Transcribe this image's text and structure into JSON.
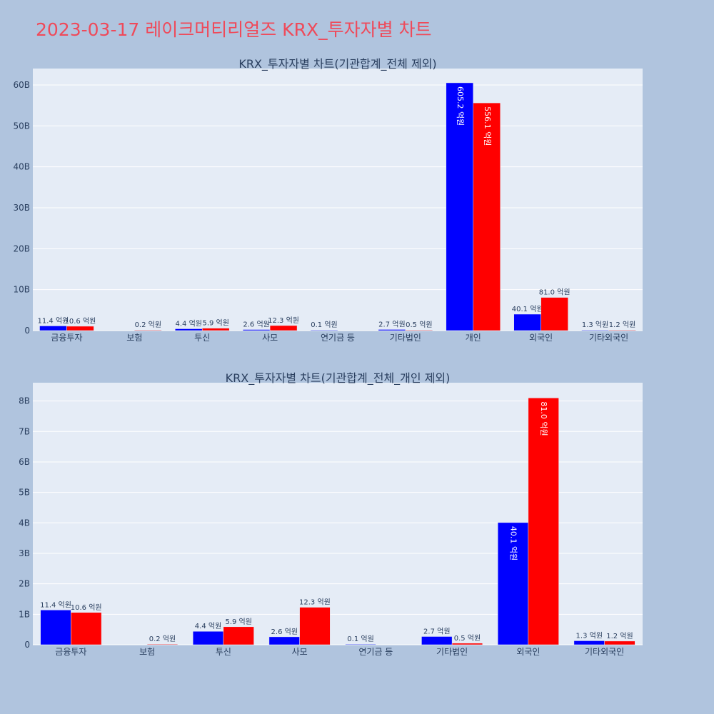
{
  "page": {
    "title": "2023-03-17 레이크머티리얼즈 KRX_투자자별 차트"
  },
  "chart_data": [
    {
      "type": "bar",
      "title": "KRX_투자자별 차트(기관합계_전체 제외)",
      "categories": [
        "금융투자",
        "보험",
        "투신",
        "사모",
        "연기금 등",
        "기타법인",
        "개인",
        "외국인",
        "기타외국인"
      ],
      "series": [
        {
          "color": "#0000ff",
          "values": [
            1140000000,
            0,
            440000000,
            260000000,
            10000000,
            270000000,
            60520000000,
            4010000000,
            130000000
          ],
          "labels": [
            "11.4 억원",
            "",
            "4.4 억원",
            "2.6 억원",
            "0.1 억원",
            "2.7 억원",
            "605.2 억원",
            "40.1 억원",
            "1.3 억원"
          ]
        },
        {
          "color": "#ff0000",
          "values": [
            1060000000,
            20000000,
            590000000,
            1230000000,
            0,
            50000000,
            55610000000,
            8100000000,
            120000000
          ],
          "labels": [
            "10.6 억원",
            "0.2 억원",
            "5.9 억원",
            "12.3 억원",
            "",
            "0.5 억원",
            "556.1 억원",
            "81.0 억원",
            "1.2 억원"
          ]
        }
      ],
      "ylim": [
        0,
        64000000000
      ],
      "yticks": [
        0,
        10000000000,
        20000000000,
        30000000000,
        40000000000,
        50000000000,
        60000000000
      ],
      "ytick_labels": [
        "0",
        "10B",
        "20B",
        "30B",
        "40B",
        "50B",
        "60B"
      ],
      "grid": true
    },
    {
      "type": "bar",
      "title": "KRX_투자자별 차트(기관합계_전체_개인 제외)",
      "categories": [
        "금융투자",
        "보험",
        "투신",
        "사모",
        "연기금 등",
        "기타법인",
        "외국인",
        "기타외국인"
      ],
      "series": [
        {
          "color": "#0000ff",
          "values": [
            1140000000,
            0,
            440000000,
            260000000,
            10000000,
            270000000,
            4010000000,
            130000000
          ],
          "labels": [
            "11.4 억원",
            "",
            "4.4 억원",
            "2.6 억원",
            "0.1 억원",
            "2.7 억원",
            "40.1 억원",
            "1.3 억원"
          ]
        },
        {
          "color": "#ff0000",
          "values": [
            1060000000,
            20000000,
            590000000,
            1230000000,
            0,
            50000000,
            8100000000,
            120000000
          ],
          "labels": [
            "10.6 억원",
            "0.2 억원",
            "5.9 억원",
            "12.3 억원",
            "",
            "0.5 억원",
            "81.0 억원",
            "1.2 억원"
          ]
        }
      ],
      "ylim": [
        0,
        8600000000
      ],
      "yticks": [
        0,
        1000000000,
        2000000000,
        3000000000,
        4000000000,
        5000000000,
        6000000000,
        7000000000,
        8000000000
      ],
      "ytick_labels": [
        "0",
        "1B",
        "2B",
        "3B",
        "4B",
        "5B",
        "6B",
        "7B",
        "8B"
      ],
      "grid": true
    }
  ]
}
